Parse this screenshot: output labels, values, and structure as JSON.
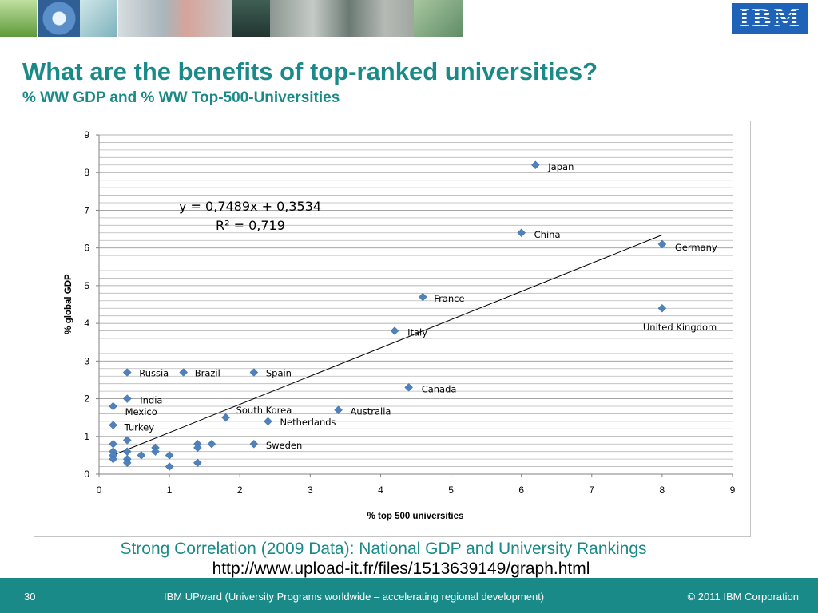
{
  "slide": {
    "title": "What are the benefits of top-ranked universities?",
    "subtitle": "% WW GDP and % WW Top-500-Universities",
    "caption": "Strong Correlation (2009 Data): National GDP and University Rankings",
    "link": "http://www.upload-it.fr/files/1513639149/graph.html",
    "logo": "IBM",
    "page_number": "30",
    "footer_text": "IBM UPward (University Programs worldwide – accelerating regional development)",
    "copyright": "© 2011 IBM Corporation",
    "accent_color": "#1a8a88",
    "marker_color": "#4f81bd",
    "banner_images": [
      "tree-image",
      "globe-image",
      "circuit-image",
      "building-image",
      "city-image",
      "aerial-image",
      "campus-image"
    ]
  },
  "chart_data": {
    "type": "scatter",
    "xlabel": "% top 500 universities",
    "ylabel": "% global GDP",
    "xlim": [
      0,
      9
    ],
    "ylim": [
      0,
      9
    ],
    "xticks": [
      "0",
      "1",
      "2",
      "3",
      "4",
      "5",
      "6",
      "7",
      "8",
      "9"
    ],
    "yticks": [
      "0",
      "1",
      "2",
      "3",
      "4",
      "5",
      "6",
      "7",
      "8",
      "9"
    ],
    "grid": "horizontal",
    "legend": "none",
    "trendline": {
      "slope": 0.7489,
      "intercept": 0.3534,
      "x_range": [
        0.2,
        8
      ]
    },
    "equation": "y = 0,7489x + 0,3534",
    "r_squared": "R² = 0,719",
    "points": [
      {
        "x": 6.2,
        "y": 8.2,
        "label": "Japan"
      },
      {
        "x": 6.0,
        "y": 6.4,
        "label": "China"
      },
      {
        "x": 8.0,
        "y": 6.1,
        "label": "Germany"
      },
      {
        "x": 4.6,
        "y": 4.7,
        "label": "France"
      },
      {
        "x": 8.0,
        "y": 4.4,
        "label": "United Kingdom"
      },
      {
        "x": 4.2,
        "y": 3.8,
        "label": "Italy"
      },
      {
        "x": 0.4,
        "y": 2.7,
        "label": "Russia"
      },
      {
        "x": 1.2,
        "y": 2.7,
        "label": "Brazil"
      },
      {
        "x": 2.2,
        "y": 2.7,
        "label": "Spain"
      },
      {
        "x": 4.4,
        "y": 2.3,
        "label": "Canada"
      },
      {
        "x": 0.4,
        "y": 2.0,
        "label": "India"
      },
      {
        "x": 0.2,
        "y": 1.8,
        "label": "Mexico"
      },
      {
        "x": 1.8,
        "y": 1.5,
        "label": "South Korea"
      },
      {
        "x": 3.4,
        "y": 1.7,
        "label": "Australia"
      },
      {
        "x": 2.4,
        "y": 1.4,
        "label": "Netherlands"
      },
      {
        "x": 0.2,
        "y": 1.3,
        "label": "Turkey"
      },
      {
        "x": 2.2,
        "y": 0.8,
        "label": "Sweden"
      },
      {
        "x": 0.2,
        "y": 0.8,
        "label": ""
      },
      {
        "x": 0.2,
        "y": 0.6,
        "label": ""
      },
      {
        "x": 0.2,
        "y": 0.5,
        "label": ""
      },
      {
        "x": 0.2,
        "y": 0.4,
        "label": ""
      },
      {
        "x": 0.4,
        "y": 0.9,
        "label": ""
      },
      {
        "x": 0.4,
        "y": 0.6,
        "label": ""
      },
      {
        "x": 0.4,
        "y": 0.4,
        "label": ""
      },
      {
        "x": 0.4,
        "y": 0.3,
        "label": ""
      },
      {
        "x": 0.6,
        "y": 0.5,
        "label": ""
      },
      {
        "x": 0.8,
        "y": 0.7,
        "label": ""
      },
      {
        "x": 0.8,
        "y": 0.6,
        "label": ""
      },
      {
        "x": 1.0,
        "y": 0.5,
        "label": ""
      },
      {
        "x": 1.0,
        "y": 0.2,
        "label": ""
      },
      {
        "x": 1.4,
        "y": 0.8,
        "label": ""
      },
      {
        "x": 1.4,
        "y": 0.7,
        "label": ""
      },
      {
        "x": 1.4,
        "y": 0.3,
        "label": ""
      },
      {
        "x": 1.6,
        "y": 0.8,
        "label": ""
      }
    ]
  }
}
